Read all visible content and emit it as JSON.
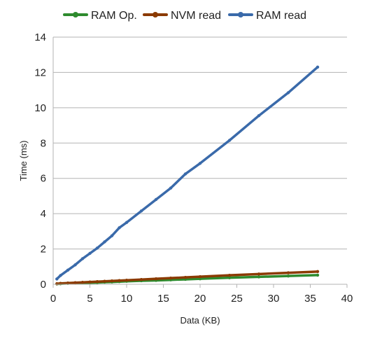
{
  "chart_data": {
    "type": "line",
    "xlabel": "Data (KB)",
    "ylabel": "Time (ms)",
    "xlim": [
      0,
      40
    ],
    "ylim": [
      0,
      14
    ],
    "x_ticks": [
      0,
      5,
      10,
      15,
      20,
      25,
      30,
      35,
      40
    ],
    "y_ticks": [
      0,
      2,
      4,
      6,
      8,
      10,
      12,
      14
    ],
    "grid": "horizontal",
    "legend_position": "top",
    "x": [
      0.5,
      1,
      2,
      3,
      4,
      5,
      6,
      7,
      8,
      9,
      10,
      12,
      14,
      16,
      18,
      20,
      24,
      28,
      32,
      36
    ],
    "series": [
      {
        "name": "RAM Op.",
        "color": "#2e8b2e",
        "values": [
          0.02,
          0.03,
          0.05,
          0.06,
          0.08,
          0.09,
          0.1,
          0.12,
          0.13,
          0.15,
          0.17,
          0.2,
          0.22,
          0.25,
          0.28,
          0.31,
          0.37,
          0.42,
          0.47,
          0.52
        ]
      },
      {
        "name": "NVM read",
        "color": "#8b3a00",
        "values": [
          0.03,
          0.05,
          0.07,
          0.09,
          0.11,
          0.13,
          0.15,
          0.17,
          0.19,
          0.21,
          0.23,
          0.27,
          0.31,
          0.35,
          0.39,
          0.43,
          0.51,
          0.58,
          0.65,
          0.72
        ]
      },
      {
        "name": "RAM read",
        "color": "#3a6aaa",
        "values": [
          0.3,
          0.5,
          0.8,
          1.1,
          1.45,
          1.75,
          2.05,
          2.4,
          2.75,
          3.2,
          3.5,
          4.15,
          4.8,
          5.45,
          6.25,
          6.85,
          8.15,
          9.55,
          10.85,
          12.3
        ]
      }
    ]
  }
}
